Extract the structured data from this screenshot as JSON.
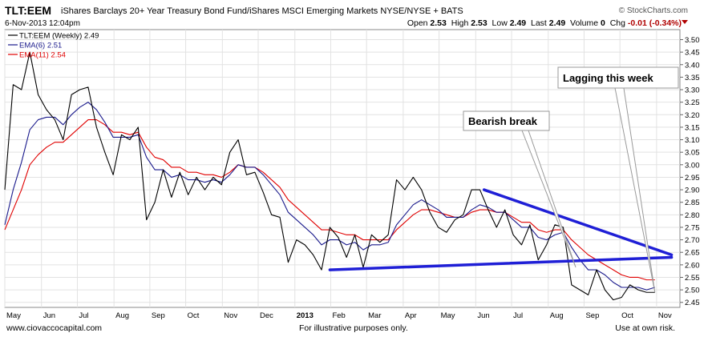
{
  "header": {
    "ticker": "TLT:EEM",
    "full_name": "iShares Barclays 20+ Year Treasury Bond Fund/iShares MSCI Emerging Markets  NYSE/NYSE + BATS",
    "datetime": "6-Nov-2013 12:04pm",
    "copyright": "© StockCharts.com",
    "quote": {
      "open_label": "Open",
      "open": "2.53",
      "high_label": "High",
      "high": "2.53",
      "low_label": "Low",
      "low": "2.49",
      "last_label": "Last",
      "last": "2.49",
      "volume_label": "Volume",
      "volume": "0",
      "chg_label": "Chg",
      "chg": "-0.01 (-0.34%)"
    }
  },
  "footer": {
    "left": "www.ciovaccocapital.com",
    "middle": "For illustrative purposes only.",
    "right": "Use at own risk."
  },
  "chart_data": {
    "type": "line",
    "title": "TLT:EEM",
    "ylim": [
      2.43,
      3.54
    ],
    "yticks": [
      2.45,
      2.5,
      2.55,
      2.6,
      2.65,
      2.7,
      2.75,
      2.8,
      2.85,
      2.9,
      2.95,
      3.0,
      3.05,
      3.1,
      3.15,
      3.2,
      3.25,
      3.3,
      3.35,
      3.4,
      3.45,
      3.5
    ],
    "ytick_labels": [
      "2.45",
      "2.50",
      "2.55",
      "2.60",
      "2.65",
      "2.70",
      "2.75",
      "2.80",
      "2.85",
      "2.90",
      "2.95",
      "3.00",
      "3.05",
      "3.10",
      "3.15",
      "3.20",
      "3.25",
      "3.30",
      "3.35",
      "3.40",
      "3.45",
      "3.50"
    ],
    "xtick_labels": [
      "May",
      "Jun",
      "Jul",
      "Aug",
      "Sep",
      "Oct",
      "Nov",
      "Dec",
      "2013",
      "Feb",
      "Mar",
      "Apr",
      "May",
      "Jun",
      "Jul",
      "Aug",
      "Sep",
      "Oct",
      "Nov"
    ],
    "xtick_weeks": [
      0,
      4.4,
      8.7,
      13.1,
      17.4,
      21.7,
      26.1,
      30.4,
      34.8,
      39.1,
      43.4,
      47.8,
      52.1,
      56.5,
      60.8,
      65.2,
      69.5,
      73.8,
      78.2
    ],
    "x_weeks": [
      0,
      1,
      2,
      3,
      4,
      5,
      6,
      7,
      8,
      9,
      10,
      11,
      12,
      13,
      14,
      15,
      16,
      17,
      18,
      19,
      20,
      21,
      22,
      23,
      24,
      25,
      26,
      27,
      28,
      29,
      30,
      31,
      32,
      33,
      34,
      35,
      36,
      37,
      38,
      39,
      40,
      41,
      42,
      43,
      44,
      45,
      46,
      47,
      48,
      49,
      50,
      51,
      52,
      53,
      54,
      55,
      56,
      57,
      58,
      59,
      60,
      61,
      62,
      63,
      64,
      65,
      66,
      67,
      68,
      69,
      70,
      71,
      72,
      73,
      74,
      75,
      76,
      77,
      78
    ],
    "series": [
      {
        "name": "TLT:EEM (Weekly) 2.49",
        "color": "#000000",
        "values": [
          2.9,
          3.32,
          3.3,
          3.45,
          3.28,
          3.22,
          3.18,
          3.1,
          3.28,
          3.3,
          3.31,
          3.15,
          3.05,
          2.96,
          3.12,
          3.1,
          3.15,
          2.78,
          2.85,
          2.98,
          2.87,
          2.97,
          2.88,
          2.95,
          2.9,
          2.95,
          2.92,
          3.05,
          3.1,
          2.96,
          2.97,
          2.89,
          2.8,
          2.79,
          2.61,
          2.7,
          2.68,
          2.64,
          2.58,
          2.75,
          2.71,
          2.63,
          2.72,
          2.59,
          2.72,
          2.69,
          2.72,
          2.94,
          2.9,
          2.95,
          2.9,
          2.81,
          2.75,
          2.73,
          2.78,
          2.8,
          2.9,
          2.9,
          2.82,
          2.75,
          2.82,
          2.72,
          2.68,
          2.76,
          2.62,
          2.68,
          2.76,
          2.75,
          2.52,
          2.5,
          2.48,
          2.58,
          2.5,
          2.46,
          2.47,
          2.52,
          2.5,
          2.49,
          2.49
        ]
      },
      {
        "name": "EMA(6) 2.51",
        "color": "#1a1a8c",
        "values": [
          2.76,
          2.9,
          3.01,
          3.14,
          3.18,
          3.19,
          3.19,
          3.16,
          3.2,
          3.23,
          3.25,
          3.22,
          3.17,
          3.11,
          3.11,
          3.11,
          3.12,
          3.03,
          2.98,
          2.98,
          2.95,
          2.96,
          2.94,
          2.94,
          2.93,
          2.94,
          2.93,
          2.96,
          3.0,
          2.99,
          2.99,
          2.96,
          2.92,
          2.88,
          2.81,
          2.78,
          2.75,
          2.72,
          2.68,
          2.7,
          2.7,
          2.68,
          2.69,
          2.66,
          2.68,
          2.68,
          2.69,
          2.76,
          2.8,
          2.84,
          2.86,
          2.84,
          2.82,
          2.79,
          2.79,
          2.79,
          2.82,
          2.84,
          2.83,
          2.81,
          2.81,
          2.78,
          2.75,
          2.75,
          2.71,
          2.7,
          2.72,
          2.73,
          2.67,
          2.62,
          2.58,
          2.58,
          2.56,
          2.53,
          2.51,
          2.51,
          2.51,
          2.5,
          2.51
        ]
      },
      {
        "name": "EMA(11) 2.54",
        "color": "#e00000",
        "values": [
          2.74,
          2.82,
          2.9,
          3.0,
          3.04,
          3.07,
          3.09,
          3.09,
          3.12,
          3.15,
          3.18,
          3.18,
          3.16,
          3.13,
          3.13,
          3.12,
          3.13,
          3.07,
          3.03,
          3.02,
          2.99,
          2.99,
          2.97,
          2.97,
          2.96,
          2.96,
          2.95,
          2.97,
          3.0,
          2.99,
          2.99,
          2.97,
          2.94,
          2.91,
          2.86,
          2.83,
          2.8,
          2.77,
          2.74,
          2.74,
          2.73,
          2.72,
          2.72,
          2.7,
          2.7,
          2.7,
          2.7,
          2.74,
          2.77,
          2.8,
          2.82,
          2.82,
          2.81,
          2.8,
          2.79,
          2.79,
          2.81,
          2.82,
          2.82,
          2.81,
          2.81,
          2.79,
          2.77,
          2.77,
          2.74,
          2.73,
          2.74,
          2.74,
          2.7,
          2.67,
          2.64,
          2.62,
          2.6,
          2.58,
          2.56,
          2.55,
          2.55,
          2.54,
          2.54
        ]
      }
    ],
    "trendlines": [
      {
        "name": "support",
        "color": "#1f1fd6",
        "from": [
          39,
          2.58
        ],
        "to": [
          80,
          2.63
        ]
      },
      {
        "name": "resistance",
        "color": "#1f1fd6",
        "from": [
          57.5,
          2.9
        ],
        "to": [
          80,
          2.64
        ]
      }
    ],
    "annotations": [
      {
        "text": "Bearish break",
        "target": [
          68.5,
          2.59
        ]
      },
      {
        "text": "Lagging this week",
        "target": [
          78,
          2.49
        ]
      }
    ],
    "grid": true,
    "legend_position": "top-left"
  }
}
